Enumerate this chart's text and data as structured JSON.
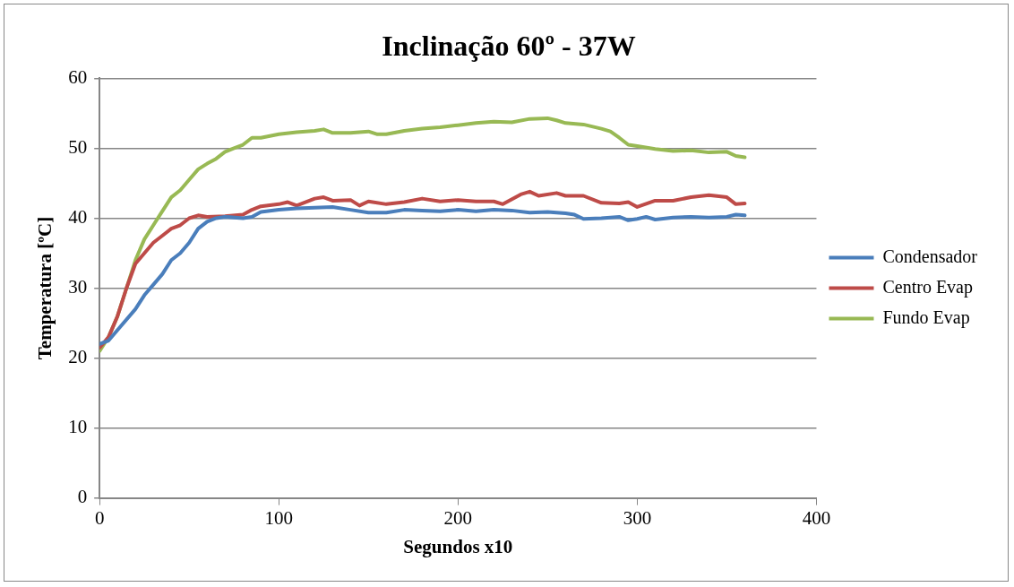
{
  "chart_data": {
    "type": "line",
    "title": "Inclinação 60º - 37W",
    "xlabel": "Segundos x10",
    "ylabel": "Temperatura [ºC]",
    "xlim": [
      0,
      400
    ],
    "xticks": [
      0,
      100,
      200,
      300,
      400
    ],
    "ylim": [
      0,
      60
    ],
    "yticks": [
      0,
      10,
      20,
      30,
      40,
      50,
      60
    ],
    "grid": "y",
    "legend": "right",
    "marker": "none",
    "line_style": "solid",
    "series": [
      {
        "name": "Condensador",
        "color": "#4a7ebb",
        "x": [
          0,
          5,
          10,
          20,
          25,
          30,
          35,
          40,
          45,
          50,
          55,
          60,
          65,
          70,
          80,
          85,
          90,
          100,
          110,
          120,
          130,
          140,
          150,
          160,
          170,
          180,
          190,
          200,
          210,
          220,
          230,
          240,
          250,
          260,
          265,
          270,
          280,
          290,
          295,
          300,
          305,
          310,
          320,
          330,
          340,
          350,
          355,
          360
        ],
        "values": [
          22,
          22.5,
          24,
          27,
          29,
          30.5,
          32,
          34,
          35,
          36.5,
          38.5,
          39.5,
          40,
          40.2,
          40,
          40.2,
          40.9,
          41.2,
          41.4,
          41.5,
          41.6,
          41.2,
          40.8,
          40.8,
          41.2,
          41.1,
          41,
          41.2,
          41,
          41.2,
          41.1,
          40.8,
          40.9,
          40.7,
          40.5,
          39.9,
          40,
          40.2,
          39.7,
          39.9,
          40.2,
          39.8,
          40.1,
          40.2,
          40.1,
          40.2,
          40.5,
          40.4
        ]
      },
      {
        "name": "Centro Evap",
        "color": "#be4b48",
        "x": [
          0,
          5,
          10,
          15,
          20,
          25,
          30,
          35,
          40,
          45,
          50,
          55,
          60,
          70,
          80,
          85,
          90,
          100,
          105,
          110,
          120,
          125,
          130,
          140,
          145,
          150,
          160,
          170,
          180,
          190,
          200,
          210,
          220,
          225,
          235,
          240,
          245,
          255,
          260,
          270,
          280,
          290,
          295,
          300,
          310,
          320,
          330,
          340,
          350,
          355,
          360
        ],
        "values": [
          21.5,
          23,
          26,
          30,
          33.5,
          35,
          36.5,
          37.5,
          38.5,
          39,
          40,
          40.4,
          40.2,
          40.3,
          40.5,
          41.2,
          41.7,
          42,
          42.3,
          41.8,
          42.8,
          43,
          42.5,
          42.6,
          41.8,
          42.4,
          42,
          42.3,
          42.8,
          42.4,
          42.6,
          42.4,
          42.4,
          42,
          43.4,
          43.8,
          43.2,
          43.6,
          43.2,
          43.2,
          42.2,
          42.1,
          42.3,
          41.6,
          42.5,
          42.5,
          43,
          43.3,
          43,
          42,
          42.1
        ]
      },
      {
        "name": "Fundo Evap",
        "color": "#98b954",
        "x": [
          0,
          5,
          10,
          15,
          20,
          25,
          30,
          35,
          40,
          45,
          50,
          55,
          60,
          65,
          70,
          75,
          80,
          85,
          90,
          100,
          110,
          120,
          125,
          130,
          140,
          150,
          155,
          160,
          170,
          180,
          190,
          200,
          210,
          220,
          230,
          240,
          250,
          255,
          260,
          270,
          280,
          285,
          290,
          295,
          300,
          310,
          320,
          330,
          340,
          350,
          355,
          360
        ],
        "values": [
          21,
          23,
          26,
          30,
          34,
          37,
          39,
          41,
          43,
          44,
          45.5,
          47,
          47.8,
          48.5,
          49.5,
          50,
          50.5,
          51.5,
          51.5,
          52,
          52.3,
          52.5,
          52.7,
          52.2,
          52.2,
          52.4,
          52,
          52,
          52.5,
          52.8,
          53,
          53.3,
          53.6,
          53.8,
          53.7,
          54.2,
          54.3,
          54,
          53.6,
          53.4,
          52.8,
          52.4,
          51.5,
          50.5,
          50.3,
          49.9,
          49.6,
          49.7,
          49.4,
          49.5,
          48.9,
          48.7
        ]
      }
    ]
  }
}
